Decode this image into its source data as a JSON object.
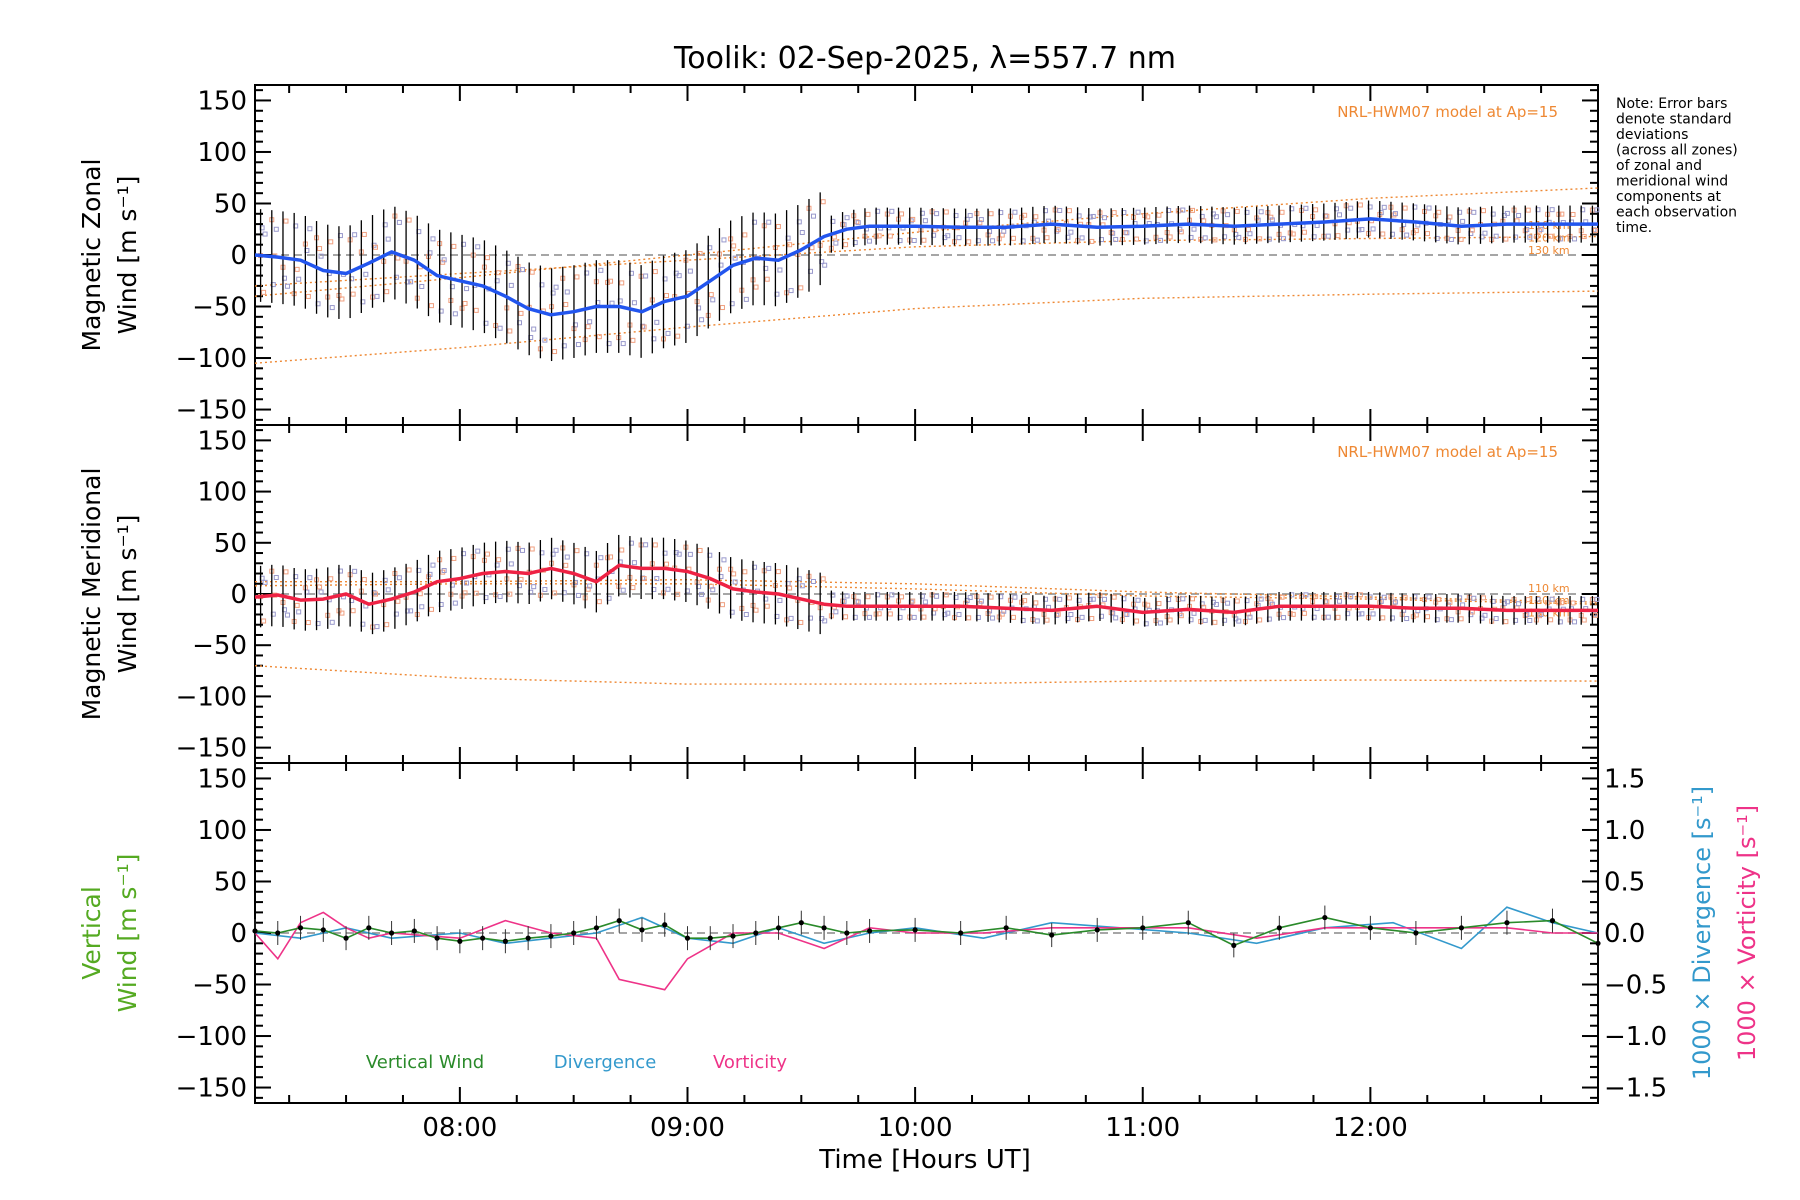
{
  "chart_data": {
    "type": "line",
    "title": "Toolik: 02-Sep-2025, λ=557.7 nm",
    "xlabel": "Time [Hours UT]",
    "x_ticks": [
      "08:00",
      "09:00",
      "10:00",
      "11:00",
      "12:00"
    ],
    "x_tick_hours": [
      8,
      9,
      10,
      11,
      12
    ],
    "x_range_hours": [
      7.1,
      13.0
    ],
    "note": "Note: Error bars denote standard deviations (across all zones) of zonal and meridional wind components at each observation time.",
    "note_lines": [
      "Note: Error bars",
      "denote standard",
      "deviations",
      "(across all zones)",
      "of zonal and",
      "meridional wind",
      "components at",
      "each observation",
      "time."
    ],
    "colors": {
      "zonal": "#2255ee",
      "meridional": "#ee2244",
      "vertical": "#2a8a2a",
      "divergence": "#3399cc",
      "vorticity": "#ee3388",
      "model": "#ee8833",
      "zone_points": "#9999cc",
      "zone_points_alt": "#f0a080",
      "errorbar": "#000000",
      "dashed_zero": "#888888"
    },
    "panels": [
      {
        "name": "zonal",
        "ylabel_lines": [
          "Magnetic Zonal",
          "Wind [m s⁻¹]"
        ],
        "ylim": [
          -165,
          165
        ],
        "y_ticks": [
          "150",
          "100",
          "50",
          "0",
          "−50",
          "−100",
          "−150"
        ],
        "y_tick_values": [
          150,
          100,
          50,
          0,
          -50,
          -100,
          -150
        ],
        "model_label": "NRL-HWM07 model at Ap=15",
        "model_alt_labels": [
          "110 km",
          "120 km",
          "130 km"
        ],
        "model_curves": [
          {
            "x": [
              7.1,
              8.0,
              9.0,
              10.0,
              11.0,
              12.0,
              13.0
            ],
            "y": [
              -105,
              -90,
              -70,
              -52,
              -42,
              -38,
              -35
            ]
          },
          {
            "x": [
              7.1,
              8.0,
              9.0,
              10.0,
              11.0,
              12.0,
              13.0
            ],
            "y": [
              -30,
              -18,
              -5,
              8,
              14,
              16,
              18
            ]
          },
          {
            "x": [
              7.1,
              8.0,
              9.0,
              10.0,
              11.0,
              12.0,
              13.0
            ],
            "y": [
              -40,
              -22,
              0,
              22,
              40,
              55,
              65
            ]
          }
        ],
        "series": [
          {
            "name": "Magnetic Zonal Wind",
            "x": [
              7.1,
              7.2,
              7.3,
              7.4,
              7.5,
              7.6,
              7.7,
              7.8,
              7.9,
              8.0,
              8.1,
              8.2,
              8.3,
              8.4,
              8.5,
              8.6,
              8.7,
              8.8,
              8.9,
              9.0,
              9.1,
              9.2,
              9.3,
              9.4,
              9.5,
              9.6,
              9.7,
              9.8,
              10.0,
              10.2,
              10.4,
              10.6,
              10.8,
              11.0,
              11.2,
              11.4,
              11.6,
              11.8,
              12.0,
              12.2,
              12.4,
              12.6,
              12.8,
              13.0
            ],
            "y": [
              0,
              -2,
              -5,
              -15,
              -18,
              -8,
              3,
              -5,
              -20,
              -25,
              -30,
              -40,
              -52,
              -58,
              -55,
              -50,
              -50,
              -55,
              -45,
              -40,
              -25,
              -10,
              -3,
              -5,
              5,
              18,
              25,
              28,
              28,
              27,
              27,
              30,
              27,
              28,
              30,
              28,
              30,
              32,
              35,
              32,
              28,
              30,
              30,
              30
            ]
          }
        ]
      },
      {
        "name": "meridional",
        "ylabel_lines": [
          "Magnetic Meridional",
          "Wind [m s⁻¹]"
        ],
        "ylim": [
          -165,
          165
        ],
        "y_ticks": [
          "150",
          "100",
          "50",
          "0",
          "−50",
          "−100",
          "−150"
        ],
        "y_tick_values": [
          150,
          100,
          50,
          0,
          -50,
          -100,
          -150
        ],
        "model_label": "NRL-HWM07 model at Ap=15",
        "model_alt_labels": [
          "110 km",
          "120 km",
          "130 km"
        ],
        "model_curves": [
          {
            "x": [
              7.1,
              8.0,
              9.0,
              10.0,
              11.0,
              12.0,
              13.0
            ],
            "y": [
              -70,
              -82,
              -88,
              -88,
              -85,
              -84,
              -85
            ]
          },
          {
            "x": [
              7.1,
              8.0,
              9.0,
              10.0,
              11.0,
              12.0,
              13.0
            ],
            "y": [
              12,
              12,
              14,
              10,
              2,
              -3,
              -8
            ]
          },
          {
            "x": [
              7.1,
              8.0,
              9.0,
              10.0,
              11.0,
              12.0,
              13.0
            ],
            "y": [
              8,
              10,
              10,
              5,
              -2,
              -5,
              -10
            ]
          }
        ],
        "series": [
          {
            "name": "Magnetic Meridional Wind",
            "x": [
              7.1,
              7.2,
              7.3,
              7.4,
              7.5,
              7.6,
              7.7,
              7.8,
              7.9,
              8.0,
              8.1,
              8.2,
              8.3,
              8.4,
              8.5,
              8.6,
              8.7,
              8.8,
              8.9,
              9.0,
              9.1,
              9.2,
              9.3,
              9.4,
              9.5,
              9.6,
              9.7,
              9.8,
              10.0,
              10.2,
              10.4,
              10.6,
              10.8,
              11.0,
              11.2,
              11.4,
              11.6,
              11.8,
              12.0,
              12.2,
              12.4,
              12.6,
              12.8,
              13.0
            ],
            "y": [
              -3,
              -1,
              -6,
              -5,
              0,
              -10,
              -5,
              2,
              12,
              15,
              20,
              22,
              20,
              25,
              20,
              12,
              28,
              25,
              25,
              22,
              15,
              5,
              2,
              0,
              -5,
              -10,
              -12,
              -12,
              -12,
              -12,
              -14,
              -16,
              -12,
              -18,
              -15,
              -18,
              -12,
              -12,
              -12,
              -14,
              -14,
              -16,
              -16,
              -16
            ]
          }
        ]
      },
      {
        "name": "vertical",
        "ylabel_lines": [
          "Vertical",
          "Wind [m s⁻¹]"
        ],
        "ylim": [
          -165,
          165
        ],
        "y_ticks": [
          "150",
          "100",
          "50",
          "0",
          "−50",
          "−100",
          "−150"
        ],
        "y_tick_values": [
          150,
          100,
          50,
          0,
          -50,
          -100,
          -150
        ],
        "right_ylabels": [
          "1000 × Divergence [s⁻¹]",
          "1000 × Vorticity [s⁻¹]"
        ],
        "right_ylim": [
          -1.65,
          1.65
        ],
        "right_ticks": [
          "1.5",
          "1.0",
          "0.5",
          "0.0",
          "−0.5",
          "−1.0",
          "−1.5"
        ],
        "right_tick_values": [
          1.5,
          1.0,
          0.5,
          0.0,
          -0.5,
          -1.0,
          -1.5
        ],
        "legend": [
          "Vertical Wind",
          "Divergence",
          "Vorticity"
        ],
        "series": [
          {
            "name": "Vertical Wind",
            "x": [
              7.1,
              7.2,
              7.3,
              7.4,
              7.5,
              7.6,
              7.7,
              7.8,
              7.9,
              8.0,
              8.1,
              8.2,
              8.3,
              8.4,
              8.5,
              8.6,
              8.7,
              8.8,
              8.9,
              9.0,
              9.1,
              9.2,
              9.3,
              9.4,
              9.5,
              9.6,
              9.7,
              9.8,
              10.0,
              10.2,
              10.4,
              10.6,
              10.8,
              11.0,
              11.2,
              11.4,
              11.6,
              11.8,
              12.0,
              12.2,
              12.4,
              12.6,
              12.8,
              13.0
            ],
            "y": [
              2,
              0,
              5,
              3,
              -5,
              5,
              0,
              2,
              -5,
              -8,
              -5,
              -8,
              -5,
              -3,
              0,
              5,
              12,
              3,
              8,
              -5,
              -5,
              -3,
              0,
              5,
              10,
              5,
              0,
              2,
              3,
              0,
              5,
              -2,
              3,
              5,
              10,
              -12,
              5,
              15,
              5,
              0,
              5,
              10,
              12,
              -10
            ]
          },
          {
            "name": "Divergence",
            "x": [
              7.1,
              7.3,
              7.5,
              7.7,
              8.0,
              8.2,
              8.4,
              8.6,
              8.8,
              9.0,
              9.2,
              9.4,
              9.6,
              9.8,
              10.0,
              10.3,
              10.6,
              10.9,
              11.2,
              11.5,
              11.8,
              12.1,
              12.4,
              12.6,
              12.8,
              13.0
            ],
            "y": [
              0.0,
              -0.05,
              0.05,
              -0.05,
              0.0,
              -0.1,
              -0.05,
              0.0,
              0.15,
              -0.05,
              -0.1,
              0.05,
              -0.1,
              0.0,
              0.05,
              -0.05,
              0.1,
              0.05,
              0.0,
              -0.1,
              0.05,
              0.1,
              -0.15,
              0.25,
              0.1,
              0.0
            ]
          },
          {
            "name": "Vorticity",
            "x": [
              7.1,
              7.2,
              7.3,
              7.4,
              7.5,
              7.6,
              7.7,
              8.0,
              8.2,
              8.4,
              8.6,
              8.7,
              8.9,
              9.0,
              9.2,
              9.4,
              9.6,
              9.8,
              10.0,
              10.3,
              10.6,
              10.9,
              11.2,
              11.5,
              11.8,
              12.1,
              12.4,
              12.6,
              12.8,
              13.0
            ],
            "y": [
              0.0,
              -0.25,
              0.1,
              0.2,
              0.05,
              -0.05,
              0.0,
              -0.05,
              0.12,
              0.0,
              -0.05,
              -0.45,
              -0.55,
              -0.25,
              0.0,
              0.0,
              -0.15,
              0.05,
              0.0,
              0.0,
              0.05,
              0.05,
              0.05,
              -0.05,
              0.05,
              0.05,
              0.05,
              0.05,
              0.0,
              0.0
            ]
          }
        ]
      }
    ]
  }
}
